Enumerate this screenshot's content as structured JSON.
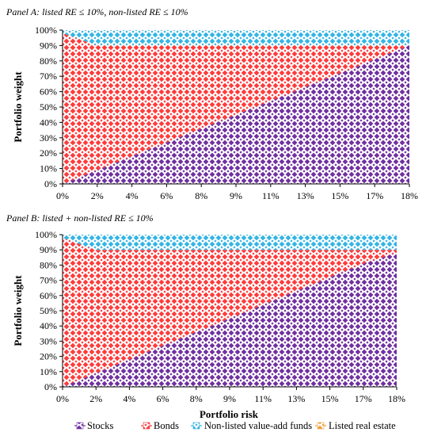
{
  "figure": {
    "xlabel": "Portfolio risk",
    "legend": [
      "Stocks",
      "Bonds",
      "Non-listed value-add funds",
      "Listed real estate"
    ]
  },
  "colors": {
    "stocks": "#7030A0",
    "bonds": "#FF3B3B",
    "nonlisted": "#33B5E5",
    "listed": "#F0A040"
  },
  "chart_data": [
    {
      "type": "area",
      "stacked": true,
      "title": "Panel A: listed RE ≤ 10%, non-listed RE ≤ 10%",
      "xlabel": "",
      "ylabel": "Portfolio weight",
      "x_ticks": [
        "0%",
        "2%",
        "4%",
        "6%",
        "8%",
        "9%",
        "11%",
        "13%",
        "15%",
        "17%",
        "18%"
      ],
      "y_ticks": [
        "0%",
        "10%",
        "20%",
        "30%",
        "40%",
        "50%",
        "60%",
        "70%",
        "80%",
        "90%",
        "100%"
      ],
      "ylim": [
        0,
        100
      ],
      "x": [
        0,
        1,
        2,
        3,
        4,
        5,
        6,
        7,
        8,
        9,
        10
      ],
      "series": [
        {
          "name": "Stocks",
          "values": [
            0,
            9,
            18,
            27,
            36,
            45,
            54,
            63,
            72,
            81,
            90
          ]
        },
        {
          "name": "Bonds",
          "values": [
            98,
            81,
            72,
            63,
            54,
            45,
            36,
            27,
            18,
            9,
            0
          ]
        },
        {
          "name": "Non-listed value-add funds",
          "values": [
            2,
            10,
            10,
            10,
            10,
            10,
            10,
            10,
            10,
            10,
            10
          ]
        },
        {
          "name": "Listed real estate",
          "values": [
            0,
            0,
            0,
            0,
            0,
            0,
            0,
            0,
            0,
            0,
            0
          ]
        }
      ],
      "legend": "none",
      "grid": false
    },
    {
      "type": "area",
      "stacked": true,
      "title": "Panel B: listed + non-listed RE ≤ 10%",
      "xlabel": "Portfolio risk",
      "ylabel": "Portfolio weight",
      "x_ticks": [
        "0%",
        "2%",
        "4%",
        "6%",
        "8%",
        "9%",
        "11%",
        "13%",
        "15%",
        "17%",
        "18%"
      ],
      "y_ticks": [
        "0%",
        "10%",
        "20%",
        "30%",
        "40%",
        "50%",
        "60%",
        "70%",
        "80%",
        "90%",
        "100%"
      ],
      "ylim": [
        0,
        100
      ],
      "x": [
        0,
        1,
        2,
        3,
        4,
        5,
        6,
        7,
        8,
        9,
        10
      ],
      "series": [
        {
          "name": "Stocks",
          "values": [
            0,
            9,
            18,
            27,
            36,
            45,
            54,
            63,
            72,
            81,
            88
          ]
        },
        {
          "name": "Bonds",
          "values": [
            98,
            81,
            72,
            63,
            54,
            45,
            36,
            27,
            18,
            9,
            2
          ]
        },
        {
          "name": "Non-listed value-add funds",
          "values": [
            2,
            10,
            10,
            10,
            10,
            10,
            10,
            10,
            10,
            10,
            10
          ]
        },
        {
          "name": "Listed real estate",
          "values": [
            0,
            0,
            0,
            0,
            0,
            0,
            0,
            0,
            0,
            0,
            0
          ]
        }
      ],
      "legend": "bottom",
      "grid": false
    }
  ]
}
